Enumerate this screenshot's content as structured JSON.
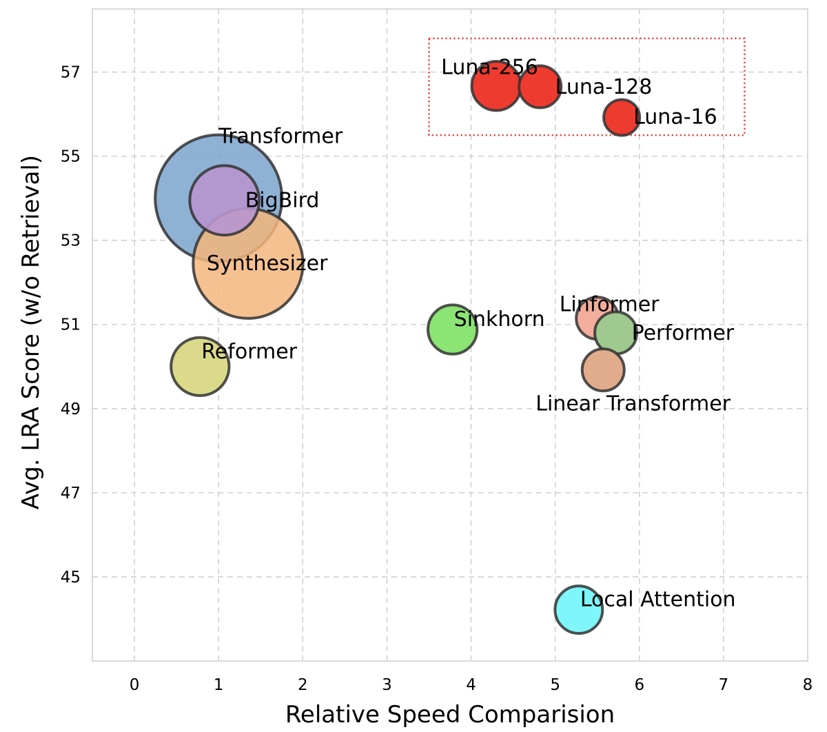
{
  "chart_data": {
    "type": "scatter",
    "subtype": "bubble",
    "xlabel": "Relative Speed Comparision",
    "ylabel": "Avg. LRA Score (w/o Retrieval)",
    "xlim": [
      -0.5,
      8
    ],
    "ylim": [
      43,
      58.5
    ],
    "xticks": [
      0,
      1,
      2,
      3,
      4,
      5,
      6,
      7,
      8
    ],
    "yticks": [
      45,
      47,
      49,
      51,
      53,
      55,
      57
    ],
    "grid": true,
    "points": [
      {
        "name": "Transformer",
        "x": 1.0,
        "y": 54.0,
        "size": 100,
        "color": "#7ba3cc",
        "alpha": 0.85
      },
      {
        "name": "Synthesizer",
        "x": 1.35,
        "y": 52.45,
        "size": 75,
        "color": "#f5b67c",
        "alpha": 0.85
      },
      {
        "name": "BigBird",
        "x": 1.07,
        "y": 53.95,
        "size": 30,
        "color": "#b796cf",
        "alpha": 0.9
      },
      {
        "name": "Reformer",
        "x": 0.78,
        "y": 50.0,
        "size": 21,
        "color": "#d8d884",
        "alpha": 0.95
      },
      {
        "name": "Sinkhorn",
        "x": 3.78,
        "y": 50.88,
        "size": 15,
        "color": "#8ce474",
        "alpha": 1
      },
      {
        "name": "Linformer",
        "x": 5.5,
        "y": 51.15,
        "size": 11,
        "color": "#f3ad9c",
        "alpha": 1
      },
      {
        "name": "Performer",
        "x": 5.72,
        "y": 50.8,
        "size": 11,
        "color": "#9fc98f",
        "alpha": 1
      },
      {
        "name": "Linear Transformer",
        "x": 5.57,
        "y": 49.92,
        "size": 11,
        "color": "#e1ac8c",
        "alpha": 1
      },
      {
        "name": "Local Attention",
        "x": 5.28,
        "y": 44.22,
        "size": 14,
        "color": "#7ff6f9",
        "alpha": 1
      },
      {
        "name": "Luna-256",
        "x": 4.3,
        "y": 56.67,
        "size": 15,
        "color": "#ee3b30",
        "alpha": 1
      },
      {
        "name": "Luna-128",
        "x": 4.82,
        "y": 56.65,
        "size": 11,
        "color": "#ee3b30",
        "alpha": 1
      },
      {
        "name": "Luna-16",
        "x": 5.79,
        "y": 55.92,
        "size": 8,
        "color": "#ee3b30",
        "alpha": 1
      }
    ],
    "highlight_box": {
      "x": [
        3.5,
        7.25
      ],
      "y": [
        55.5,
        57.8
      ],
      "color": "#e8302a",
      "style": "dotted"
    }
  }
}
